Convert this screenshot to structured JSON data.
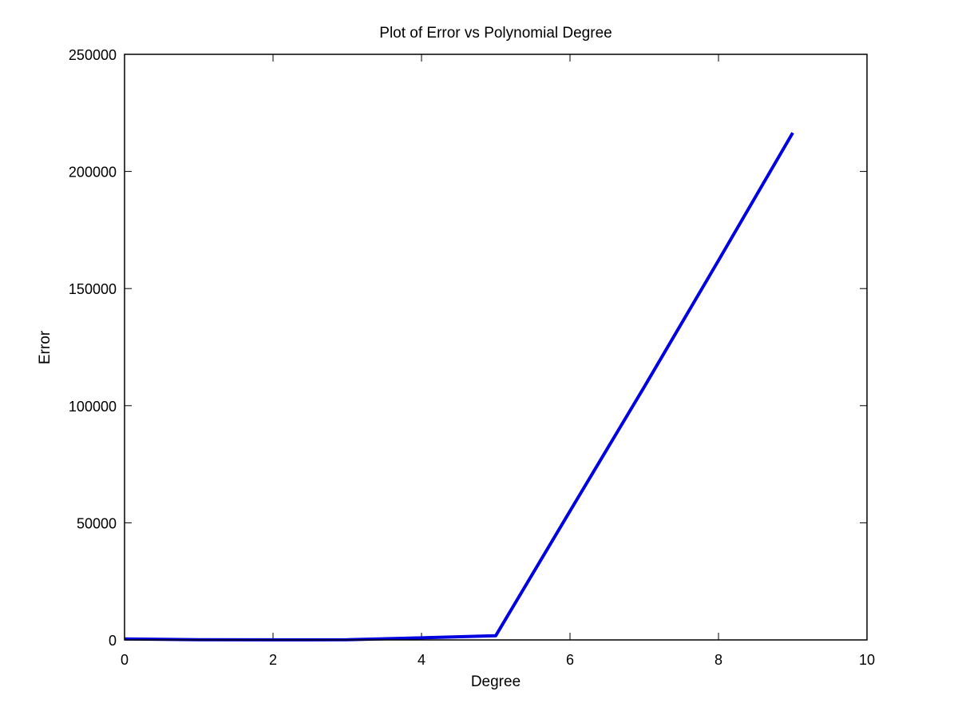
{
  "chart_data": {
    "type": "line",
    "title": "Plot of Error vs Polynomial Degree",
    "xlabel": "Degree",
    "ylabel": "Error",
    "xlim": [
      0,
      10
    ],
    "ylim": [
      0,
      250000
    ],
    "x_ticks": [
      0,
      2,
      4,
      6,
      8,
      10
    ],
    "y_ticks": [
      0,
      50000,
      100000,
      150000,
      200000,
      250000
    ],
    "x_tick_labels": [
      "0",
      "2",
      "4",
      "6",
      "8",
      "10"
    ],
    "y_tick_labels": [
      "0",
      "50000",
      "100000",
      "150000",
      "200000",
      "250000"
    ],
    "grid": false,
    "series": [
      {
        "color": "#0000e0",
        "x": [
          0,
          1,
          2,
          3,
          4,
          5,
          6,
          7,
          8,
          9
        ],
        "y": [
          400,
          100,
          50,
          80,
          900,
          1800,
          55000,
          108000,
          162000,
          216500
        ]
      }
    ]
  }
}
